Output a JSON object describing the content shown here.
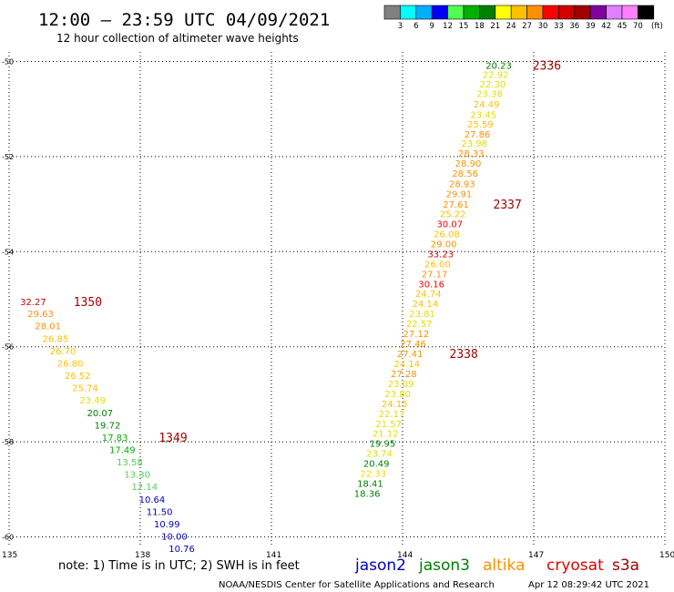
{
  "header": {
    "title": "12:00 – 23:59 UTC 04/09/2021",
    "subtitle": "12 hour collection of altimeter wave heights"
  },
  "legend": {
    "unit": "(ft)",
    "colors": [
      "#808080",
      "#00ffff",
      "#00b0ff",
      "#0000ff",
      "#50ff50",
      "#00b000",
      "#008000",
      "#ffff00",
      "#ffc000",
      "#ff9000",
      "#ff0000",
      "#d00000",
      "#a00000",
      "#8000a0",
      "#e080ff",
      "#ff80ff",
      "#000000"
    ],
    "labels": [
      "3",
      "6",
      "9",
      "12",
      "15",
      "18",
      "21",
      "24",
      "27",
      "30",
      "33",
      "36",
      "39",
      "42",
      "45",
      "70"
    ]
  },
  "footer": {
    "note": "note: 1) Time is in UTC; 2) SWH is in feet",
    "credit": "NOAA/NESDIS Center for Satellite Applications and Research",
    "timestamp": "Apr 12 08:29:42 UTC 2021",
    "satellites": [
      {
        "name": "jason2",
        "color": "#0000c0"
      },
      {
        "name": "jason3",
        "color": "#008000"
      },
      {
        "name": "altika",
        "color": "#ff9000"
      },
      {
        "name": "cryosat",
        "color": "#e00000"
      },
      {
        "name": "s3a",
        "color": "#a00000"
      }
    ]
  },
  "chart_data": {
    "type": "scatter",
    "x_label": "",
    "y_label": "",
    "xlim": [
      135,
      150
    ],
    "ylim": [
      -60.2,
      -49.8
    ],
    "x_ticks": [
      "135",
      "138",
      "141",
      "144",
      "147",
      "150"
    ],
    "y_ticks": [
      "-50",
      "-52",
      "-54",
      "-56",
      "-58",
      "-60"
    ],
    "grid": true,
    "series": [
      {
        "name": "",
        "points": [
          {
            "lon": 146.2,
            "lat": -50.08,
            "value": "20.23",
            "color": "#008000"
          },
          {
            "lon": 146.13,
            "lat": -50.27,
            "value": "22.92",
            "color": "#e0e000"
          },
          {
            "lon": 146.06,
            "lat": -50.47,
            "value": "22.30",
            "color": "#e0e000"
          },
          {
            "lon": 145.99,
            "lat": -50.67,
            "value": "23.38",
            "color": "#e0e000"
          },
          {
            "lon": 145.92,
            "lat": -50.89,
            "value": "24.49",
            "color": "#ffc000"
          },
          {
            "lon": 145.85,
            "lat": -51.11,
            "value": "23.45",
            "color": "#e0e000"
          },
          {
            "lon": 145.78,
            "lat": -51.31,
            "value": "25.59",
            "color": "#ffc000"
          },
          {
            "lon": 145.71,
            "lat": -51.52,
            "value": "27.86",
            "color": "#ff9000"
          },
          {
            "lon": 145.64,
            "lat": -51.72,
            "value": "23.98",
            "color": "#e0e000"
          },
          {
            "lon": 145.57,
            "lat": -51.93,
            "value": "28.33",
            "color": "#ff9000"
          },
          {
            "lon": 145.5,
            "lat": -52.14,
            "value": "28.90",
            "color": "#ff9000"
          },
          {
            "lon": 145.43,
            "lat": -52.35,
            "value": "28.56",
            "color": "#ff9000"
          },
          {
            "lon": 145.36,
            "lat": -52.57,
            "value": "28.93",
            "color": "#ff9000"
          },
          {
            "lon": 145.29,
            "lat": -52.78,
            "value": "29.91",
            "color": "#ff9000"
          },
          {
            "lon": 145.22,
            "lat": -53.0,
            "value": "27.61",
            "color": "#ff9000"
          },
          {
            "lon": 145.15,
            "lat": -53.2,
            "value": "25.22",
            "color": "#ffc000"
          },
          {
            "lon": 145.08,
            "lat": -53.41,
            "value": "30.07",
            "color": "#ff0000"
          },
          {
            "lon": 145.01,
            "lat": -53.62,
            "value": "26.08",
            "color": "#ffc000"
          },
          {
            "lon": 144.94,
            "lat": -53.83,
            "value": "29.00",
            "color": "#ff9000"
          },
          {
            "lon": 144.87,
            "lat": -54.04,
            "value": "33.23",
            "color": "#d00000"
          },
          {
            "lon": 144.8,
            "lat": -54.25,
            "value": "26.00",
            "color": "#ffc000"
          },
          {
            "lon": 144.73,
            "lat": -54.46,
            "value": "27.17",
            "color": "#ff9000"
          },
          {
            "lon": 144.66,
            "lat": -54.67,
            "value": "30.16",
            "color": "#ff0000"
          },
          {
            "lon": 144.59,
            "lat": -54.88,
            "value": "24.74",
            "color": "#ffc000"
          },
          {
            "lon": 144.52,
            "lat": -55.09,
            "value": "24.14",
            "color": "#ffc000"
          },
          {
            "lon": 144.45,
            "lat": -55.3,
            "value": "23.81",
            "color": "#e0e000"
          },
          {
            "lon": 144.38,
            "lat": -55.51,
            "value": "22.57",
            "color": "#e0e000"
          },
          {
            "lon": 144.31,
            "lat": -55.72,
            "value": "27.12",
            "color": "#ff9000"
          },
          {
            "lon": 144.24,
            "lat": -55.93,
            "value": "27.46",
            "color": "#ff9000"
          },
          {
            "lon": 144.17,
            "lat": -56.14,
            "value": "27.41",
            "color": "#ff9000"
          },
          {
            "lon": 144.1,
            "lat": -56.35,
            "value": "24.14",
            "color": "#ffc000"
          },
          {
            "lon": 144.03,
            "lat": -56.56,
            "value": "27.28",
            "color": "#ff9000"
          },
          {
            "lon": 143.96,
            "lat": -56.77,
            "value": "23.09",
            "color": "#e0e000"
          },
          {
            "lon": 143.89,
            "lat": -56.98,
            "value": "23.80",
            "color": "#e0e000"
          },
          {
            "lon": 143.82,
            "lat": -57.19,
            "value": "24.15",
            "color": "#ffc000"
          },
          {
            "lon": 143.75,
            "lat": -57.4,
            "value": "22.17",
            "color": "#e0e000"
          },
          {
            "lon": 143.68,
            "lat": -57.61,
            "value": "21.57",
            "color": "#e0e000"
          },
          {
            "lon": 143.61,
            "lat": -57.82,
            "value": "21.12",
            "color": "#e0e000"
          },
          {
            "lon": 143.54,
            "lat": -58.03,
            "value": "19.95",
            "color": "#008000"
          },
          {
            "lon": 143.47,
            "lat": -58.24,
            "value": "23.74",
            "color": "#e0e000"
          },
          {
            "lon": 143.4,
            "lat": -58.45,
            "value": "20.49",
            "color": "#008000"
          },
          {
            "lon": 143.33,
            "lat": -58.66,
            "value": "22.33",
            "color": "#e0e000"
          },
          {
            "lon": 143.26,
            "lat": -58.87,
            "value": "18.41",
            "color": "#008000"
          },
          {
            "lon": 143.19,
            "lat": -59.08,
            "value": "18.36",
            "color": "#008000"
          },
          {
            "lon": 135.55,
            "lat": -55.05,
            "value": "32.27",
            "color": "#d00000"
          },
          {
            "lon": 135.72,
            "lat": -55.3,
            "value": "29.63",
            "color": "#ff9000"
          },
          {
            "lon": 135.89,
            "lat": -55.56,
            "value": "28.01",
            "color": "#ff9000"
          },
          {
            "lon": 136.06,
            "lat": -55.82,
            "value": "26.85",
            "color": "#ffc000"
          },
          {
            "lon": 136.23,
            "lat": -56.08,
            "value": "26.70",
            "color": "#ffc000"
          },
          {
            "lon": 136.4,
            "lat": -56.34,
            "value": "26.80",
            "color": "#ffc000"
          },
          {
            "lon": 136.57,
            "lat": -56.6,
            "value": "26.52",
            "color": "#ffc000"
          },
          {
            "lon": 136.74,
            "lat": -56.86,
            "value": "25.74",
            "color": "#ffc000"
          },
          {
            "lon": 136.91,
            "lat": -57.12,
            "value": "23.49",
            "color": "#e0e000"
          },
          {
            "lon": 137.08,
            "lat": -57.38,
            "value": "20.07",
            "color": "#008000"
          },
          {
            "lon": 137.25,
            "lat": -57.64,
            "value": "19.72",
            "color": "#008000"
          },
          {
            "lon": 137.42,
            "lat": -57.9,
            "value": "17.83",
            "color": "#00b000"
          },
          {
            "lon": 137.59,
            "lat": -58.16,
            "value": "17.49",
            "color": "#00b000"
          },
          {
            "lon": 137.76,
            "lat": -58.42,
            "value": "13.58",
            "color": "#50d050"
          },
          {
            "lon": 137.93,
            "lat": -58.68,
            "value": "13.30",
            "color": "#50d050"
          },
          {
            "lon": 138.1,
            "lat": -58.94,
            "value": "12.14",
            "color": "#50d050"
          },
          {
            "lon": 138.27,
            "lat": -59.2,
            "value": "10.64",
            "color": "#0000c0"
          },
          {
            "lon": 138.44,
            "lat": -59.46,
            "value": "11.50",
            "color": "#0000c0"
          },
          {
            "lon": 138.61,
            "lat": -59.72,
            "value": "10.99",
            "color": "#0000c0"
          },
          {
            "lon": 138.78,
            "lat": -59.98,
            "value": "10.00",
            "color": "#0000c0"
          },
          {
            "lon": 138.95,
            "lat": -60.24,
            "value": "10.76",
            "color": "#0000c0"
          }
        ]
      }
    ],
    "pass_labels": [
      {
        "text": "2336",
        "lon": 147.3,
        "lat": -50.08,
        "color": "#a00000"
      },
      {
        "text": "2337",
        "lon": 146.4,
        "lat": -53.0,
        "color": "#a00000"
      },
      {
        "text": "2338",
        "lon": 145.4,
        "lat": -56.14,
        "color": "#a00000"
      },
      {
        "text": "1350",
        "lon": 136.8,
        "lat": -55.05,
        "color": "#a00000"
      },
      {
        "text": "1349",
        "lon": 138.75,
        "lat": -57.9,
        "color": "#a00000"
      }
    ]
  }
}
